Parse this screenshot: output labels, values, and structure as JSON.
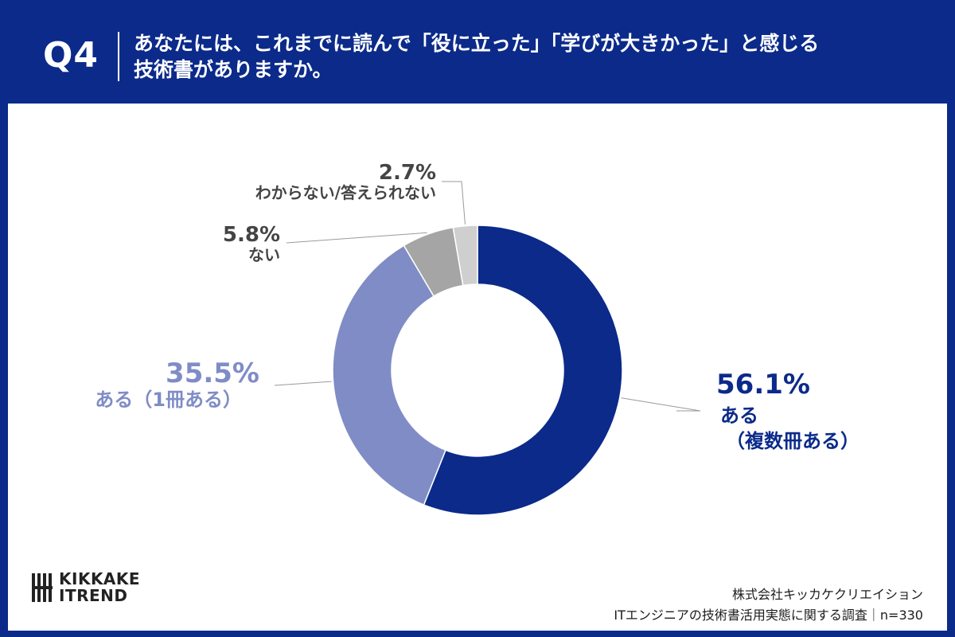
{
  "header": {
    "question_number": "Q4",
    "question_line1": "あなたには、これまでに読んで「役に立った」「学びが大きかった」と感じる",
    "question_line2": "技術書がありますか。"
  },
  "chart_data": {
    "type": "pie",
    "donut": true,
    "title": "",
    "categories": [
      "ある（複数冊ある）",
      "ある（1冊ある）",
      "ない",
      "わからない/答えられない"
    ],
    "values": [
      56.1,
      35.5,
      5.8,
      2.7
    ],
    "colors": [
      "#0b2a8a",
      "#7f8cc6",
      "#a5a5a5",
      "#cfcfcf"
    ],
    "labels": [
      {
        "pct": "56.1%",
        "lines": [
          "ある",
          "（複数冊ある）"
        ]
      },
      {
        "pct": "35.5%",
        "lines": [
          "ある（1冊ある）"
        ]
      },
      {
        "pct": "5.8%",
        "lines": [
          "ない"
        ]
      },
      {
        "pct": "2.7%",
        "lines": [
          "わからない/答えられない"
        ]
      }
    ],
    "label_colors": [
      "#0b2a8a",
      "#7f8cc6",
      "#444444",
      "#444444"
    ]
  },
  "logo": {
    "line1": "KIKKAKE",
    "line2": "ITREND"
  },
  "credit": {
    "company": "株式会社キッカケクリエイション",
    "survey": "ITエンジニアの技術書活用実態に関する調査｜n=330"
  }
}
